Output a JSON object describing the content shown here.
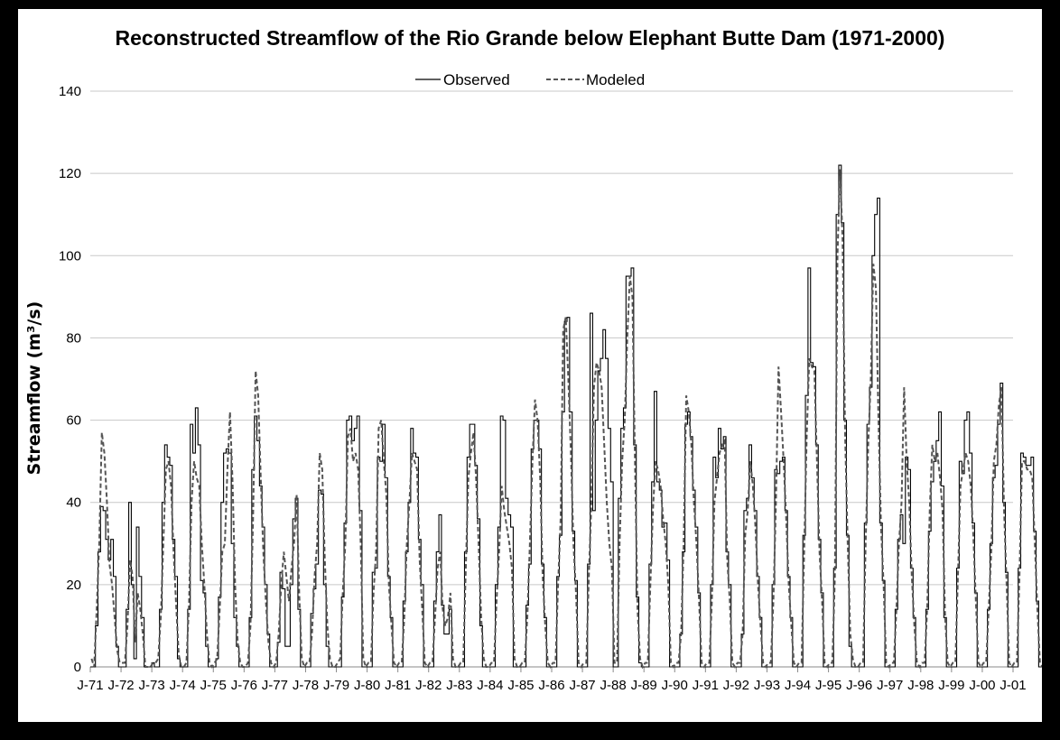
{
  "chart_data": {
    "type": "line",
    "title": "Reconstructed Streamflow of the Rio Grande below Elephant Butte Dam (1971-2000)",
    "ylabel": "Streamflow (m³/s)",
    "xlabel": "",
    "ylim": [
      0,
      140
    ],
    "yticks": [
      0,
      20,
      40,
      60,
      80,
      100,
      120,
      140
    ],
    "x_tick_labels": [
      "J-71",
      "J-72",
      "J-73",
      "J-74",
      "J-75",
      "J-76",
      "J-77",
      "J-78",
      "J-79",
      "J-80",
      "J-81",
      "J-82",
      "J-83",
      "J-84",
      "J-85",
      "J-86",
      "J-87",
      "J-88",
      "J-89",
      "J-90",
      "J-91",
      "J-92",
      "J-93",
      "J-94",
      "J-95",
      "J-96",
      "J-97",
      "J-98",
      "J-99",
      "J-00",
      "J-01"
    ],
    "grid": "horizontal",
    "legend_position": "top-center",
    "x_start": "1971-01",
    "x_end": "2001-01",
    "series": [
      {
        "name": "Observed",
        "style": "solid",
        "color": "#000000",
        "values": [
          0,
          0,
          10,
          28,
          39,
          38,
          31,
          26,
          31,
          22,
          5,
          0,
          0,
          0,
          14,
          40,
          20,
          2,
          34,
          22,
          12,
          0,
          0,
          0,
          1,
          0,
          0,
          14,
          40,
          54,
          51,
          49,
          31,
          22,
          2,
          0,
          0,
          0,
          14,
          59,
          52,
          63,
          54,
          21,
          18,
          5,
          0,
          0,
          0,
          2,
          17,
          40,
          52,
          53,
          52,
          30,
          12,
          5,
          0,
          0,
          0,
          0,
          12,
          48,
          61,
          55,
          44,
          34,
          20,
          8,
          0,
          0,
          0,
          6,
          23,
          19,
          5,
          5,
          20,
          36,
          41,
          14,
          0,
          0,
          0,
          0,
          13,
          19,
          25,
          43,
          42,
          20,
          5,
          0,
          0,
          0,
          0,
          0,
          17,
          35,
          60,
          61,
          55,
          58,
          61,
          38,
          0,
          0,
          0,
          0,
          23,
          24,
          51,
          50,
          59,
          46,
          22,
          12,
          0,
          0,
          0,
          0,
          16,
          28,
          40,
          58,
          52,
          51,
          31,
          20,
          0,
          0,
          0,
          0,
          16,
          28,
          37,
          15,
          8,
          8,
          14,
          0,
          0,
          0,
          0,
          0,
          28,
          51,
          59,
          59,
          49,
          36,
          10,
          0,
          0,
          0,
          0,
          0,
          20,
          34,
          61,
          60,
          41,
          37,
          34,
          0,
          0,
          0,
          0,
          0,
          15,
          25,
          53,
          60,
          60,
          53,
          25,
          12,
          0,
          0,
          0,
          0,
          22,
          32,
          62,
          84,
          85,
          62,
          33,
          21,
          0,
          0,
          0,
          0,
          25,
          86,
          38,
          60,
          72,
          75,
          82,
          75,
          58,
          45,
          0,
          0,
          41,
          58,
          63,
          95,
          95,
          97,
          54,
          17,
          1,
          0,
          0,
          0,
          25,
          45,
          67,
          45,
          43,
          34,
          35,
          26,
          0,
          0,
          0,
          0,
          8,
          28,
          59,
          62,
          56,
          43,
          34,
          18,
          0,
          0,
          0,
          0,
          20,
          51,
          46,
          58,
          53,
          56,
          28,
          20,
          0,
          0,
          0,
          0,
          8,
          38,
          41,
          54,
          46,
          38,
          22,
          12,
          0,
          0,
          0,
          0,
          20,
          48,
          47,
          50,
          51,
          38,
          22,
          12,
          0,
          0,
          0,
          0,
          32,
          66,
          97,
          74,
          73,
          54,
          31,
          18,
          0,
          0,
          0,
          0,
          24,
          110,
          122,
          108,
          60,
          32,
          5,
          0,
          0,
          0,
          0,
          0,
          35,
          59,
          68,
          100,
          110,
          114,
          35,
          21,
          0,
          0,
          0,
          0,
          14,
          31,
          37,
          30,
          51,
          48,
          24,
          12,
          0,
          0,
          0,
          0,
          14,
          33,
          45,
          50,
          55,
          62,
          44,
          12,
          0,
          0,
          0,
          0,
          24,
          50,
          47,
          60,
          62,
          52,
          35,
          18,
          0,
          0,
          0,
          0,
          14,
          30,
          46,
          49,
          59,
          69,
          40,
          23,
          0,
          0,
          0,
          0,
          24,
          52,
          51,
          49,
          49,
          51,
          33,
          16,
          0,
          0
        ]
      },
      {
        "name": "Modeled",
        "style": "dashed",
        "color": "#555555",
        "values": [
          2,
          0,
          14,
          30,
          57,
          52,
          40,
          25,
          20,
          12,
          4,
          1,
          1,
          1,
          10,
          26,
          22,
          6,
          18,
          14,
          8,
          0,
          0,
          0,
          1,
          1,
          2,
          12,
          30,
          48,
          50,
          44,
          28,
          15,
          3,
          0,
          0,
          1,
          15,
          40,
          50,
          46,
          44,
          30,
          20,
          8,
          1,
          0,
          1,
          2,
          14,
          28,
          30,
          48,
          62,
          45,
          20,
          6,
          1,
          0,
          0,
          1,
          10,
          36,
          72,
          66,
          46,
          28,
          16,
          6,
          1,
          0,
          1,
          8,
          20,
          28,
          22,
          16,
          24,
          30,
          42,
          18,
          2,
          0,
          1,
          1,
          8,
          22,
          30,
          52,
          48,
          26,
          10,
          2,
          0,
          0,
          1,
          2,
          18,
          30,
          56,
          58,
          50,
          52,
          48,
          30,
          2,
          0,
          1,
          1,
          18,
          28,
          58,
          60,
          50,
          42,
          20,
          10,
          1,
          0,
          1,
          1,
          12,
          30,
          40,
          52,
          50,
          48,
          26,
          14,
          1,
          0,
          1,
          1,
          12,
          24,
          28,
          14,
          10,
          12,
          18,
          2,
          0,
          0,
          1,
          1,
          24,
          46,
          52,
          57,
          46,
          30,
          12,
          2,
          0,
          0,
          1,
          1,
          16,
          28,
          44,
          38,
          34,
          30,
          24,
          2,
          0,
          0,
          1,
          1,
          12,
          30,
          50,
          65,
          60,
          46,
          22,
          10,
          1,
          0,
          1,
          1,
          20,
          36,
          82,
          85,
          70,
          52,
          30,
          18,
          1,
          0,
          1,
          1,
          22,
          40,
          68,
          74,
          72,
          68,
          54,
          40,
          30,
          24,
          1,
          1,
          30,
          50,
          60,
          80,
          95,
          90,
          50,
          14,
          2,
          0,
          1,
          1,
          20,
          38,
          50,
          48,
          44,
          36,
          30,
          20,
          1,
          0,
          1,
          1,
          8,
          30,
          66,
          62,
          54,
          40,
          30,
          16,
          1,
          0,
          1,
          1,
          16,
          40,
          46,
          52,
          54,
          55,
          26,
          16,
          1,
          0,
          1,
          1,
          8,
          32,
          38,
          50,
          44,
          34,
          20,
          10,
          1,
          0,
          1,
          1,
          16,
          40,
          73,
          62,
          50,
          36,
          20,
          10,
          1,
          0,
          1,
          1,
          28,
          56,
          75,
          73,
          72,
          50,
          28,
          16,
          1,
          0,
          1,
          1,
          22,
          100,
          121,
          104,
          56,
          30,
          8,
          2,
          0,
          0,
          1,
          1,
          30,
          54,
          70,
          98,
          92,
          60,
          34,
          20,
          1,
          0,
          1,
          1,
          14,
          30,
          40,
          68,
          50,
          40,
          22,
          10,
          1,
          0,
          1,
          1,
          14,
          38,
          54,
          50,
          52,
          46,
          38,
          12,
          1,
          0,
          1,
          1,
          22,
          44,
          48,
          52,
          50,
          44,
          32,
          16,
          1,
          0,
          1,
          1,
          14,
          28,
          50,
          54,
          64,
          68,
          38,
          20,
          1,
          0,
          1,
          1,
          22,
          50,
          50,
          48,
          48,
          46,
          30,
          14,
          1,
          0
        ]
      }
    ]
  }
}
